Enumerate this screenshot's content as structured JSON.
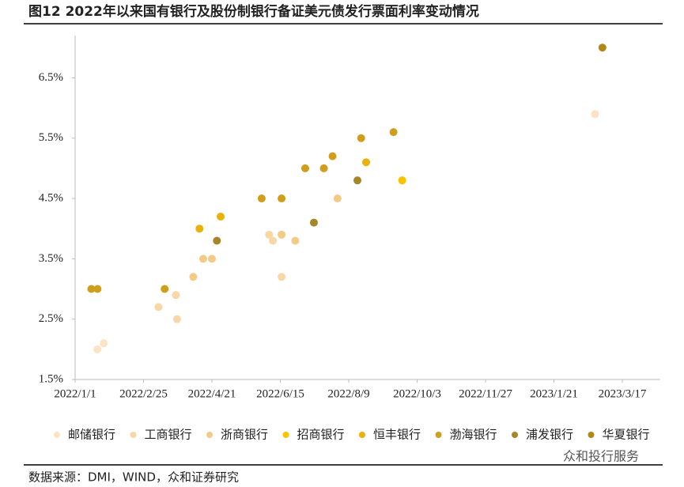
{
  "chart_data": {
    "type": "scatter",
    "title": "图12 2022年以来国有银行及股份制银行备证美元债发行票面利率变动情况",
    "source": "数据来源：DMI，WIND，众和证券研究",
    "watermark": "众和投行服务",
    "xlim": [
      "2022/1/1",
      "2023/3/17"
    ],
    "xticks": [
      "2022/1/1",
      "2022/2/25",
      "2022/4/21",
      "2022/6/15",
      "2022/8/9",
      "2022/10/3",
      "2022/11/27",
      "2023/1/21",
      "2023/3/17"
    ],
    "ylim": [
      1.5,
      7.2
    ],
    "yticks": [
      {
        "value": 1.5,
        "label": "1.5%"
      },
      {
        "value": 2.5,
        "label": "2.5%"
      },
      {
        "value": 3.5,
        "label": "3.5%"
      },
      {
        "value": 4.5,
        "label": "4.5%"
      },
      {
        "value": 5.5,
        "label": "5.5%"
      },
      {
        "value": 6.5,
        "label": "6.5%"
      }
    ],
    "grid": false,
    "legend": "bottom",
    "series": [
      {
        "name": "邮储银行",
        "color": "#fbe3c4",
        "x": [
          "2022/1/19",
          "2022/1/24",
          "2023/2/23"
        ],
        "values": [
          2.0,
          2.1,
          5.9
        ]
      },
      {
        "name": "工商银行",
        "color": "#f7d7a6",
        "x": [
          "2022/3/9",
          "2022/3/23",
          "2022/3/24",
          "2022/6/6",
          "2022/6/9",
          "2022/6/16"
        ],
        "values": [
          2.7,
          2.9,
          2.5,
          3.9,
          3.8,
          3.2
        ]
      },
      {
        "name": "浙商银行",
        "color": "#f3ca86",
        "x": [
          "2022/4/6",
          "2022/4/14",
          "2022/4/21",
          "2022/6/16",
          "2022/6/27",
          "2022/7/31"
        ],
        "values": [
          3.2,
          3.5,
          3.5,
          3.9,
          3.8,
          4.5
        ]
      },
      {
        "name": "招商银行",
        "color": "#f7c200",
        "x": [
          "2022/9/21"
        ],
        "values": [
          4.8
        ]
      },
      {
        "name": "恒丰银行",
        "color": "#e8b20a",
        "x": [
          "2022/4/11",
          "2022/4/28",
          "2022/8/23"
        ],
        "values": [
          4.0,
          4.2,
          5.1
        ]
      },
      {
        "name": "渤海银行",
        "color": "#cf9e1c",
        "x": [
          "2022/1/14",
          "2022/1/19",
          "2022/3/14",
          "2022/5/31",
          "2022/6/16",
          "2022/7/5",
          "2022/7/20",
          "2022/7/27",
          "2022/8/19",
          "2022/9/14"
        ],
        "values": [
          3.0,
          3.0,
          3.0,
          4.5,
          4.5,
          5.0,
          5.0,
          5.2,
          5.5,
          5.6
        ]
      },
      {
        "name": "浦发银行",
        "color": "#a68628",
        "x": [
          "2022/4/25",
          "2022/7/12",
          "2022/8/16"
        ],
        "values": [
          3.8,
          4.1,
          4.8
        ]
      },
      {
        "name": "华夏银行",
        "color": "#b08818",
        "x": [
          "2023/3/1"
        ],
        "values": [
          7.0
        ]
      }
    ]
  }
}
